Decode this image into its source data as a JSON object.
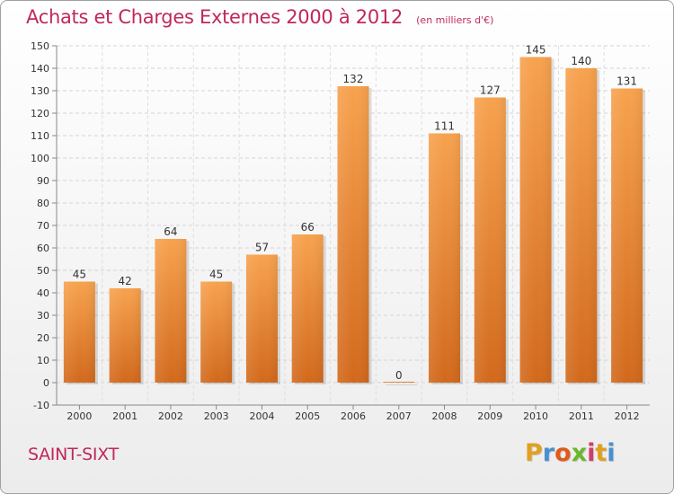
{
  "header": {
    "title": "Achats et Charges Externes 2000 à 2012",
    "unit": "(en milliers d'€)"
  },
  "footer": {
    "commune": "SAINT-SIXT",
    "logo_letters": [
      "P",
      "r",
      "o",
      "x",
      "i",
      "t",
      "i"
    ],
    "logo_colors": [
      "#e0a020",
      "#4a8fd0",
      "#e05a1a",
      "#6ab82a",
      "#d43a6a",
      "#e0a020",
      "#4a8fd0"
    ]
  },
  "chart_data": {
    "type": "bar",
    "categories": [
      "2000",
      "2001",
      "2002",
      "2003",
      "2004",
      "2005",
      "2006",
      "2007",
      "2008",
      "2009",
      "2010",
      "2011",
      "2012"
    ],
    "values": [
      45,
      42,
      64,
      45,
      57,
      66,
      132,
      0,
      111,
      127,
      145,
      140,
      131
    ],
    "data_labels": [
      "45",
      "42",
      "64",
      "45",
      "57",
      "66",
      "132",
      "0",
      "111",
      "127",
      "145",
      "140",
      "131"
    ],
    "ylim": [
      -10,
      150
    ],
    "yticks": [
      -10,
      0,
      10,
      20,
      30,
      40,
      50,
      60,
      70,
      80,
      90,
      100,
      110,
      120,
      130,
      140,
      150
    ],
    "grid": true,
    "bar_color": "#f0913a",
    "bar_color_dark": "#d0661a"
  }
}
